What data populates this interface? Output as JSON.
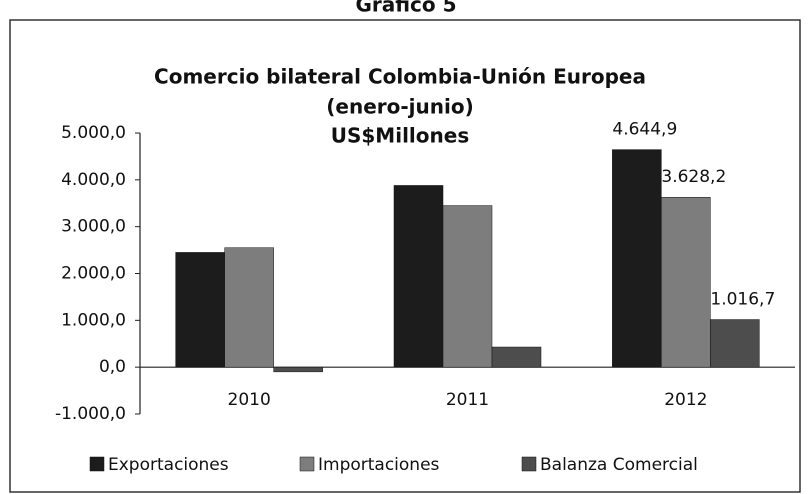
{
  "chart_data": {
    "type": "bar",
    "caption": "Gráfico 5",
    "title": [
      "Comercio bilateral Colombia-Unión Europea",
      "(enero-junio)",
      "US$Millones"
    ],
    "categories": [
      "2010",
      "2011",
      "2012"
    ],
    "series": [
      {
        "name": "Exportaciones",
        "color": "#1c1c1c",
        "values": [
          2450,
          3880,
          4644.9
        ],
        "value_labels": [
          null,
          null,
          "4.644,9"
        ]
      },
      {
        "name": "Importaciones",
        "color": "#7d7d7d",
        "values": [
          2550,
          3450,
          3628.2
        ],
        "value_labels": [
          null,
          null,
          "3.628,2"
        ]
      },
      {
        "name": "Balanza Comercial",
        "color": "#4d4d4d",
        "values": [
          -100,
          430,
          1016.7
        ],
        "value_labels": [
          null,
          null,
          "1.016,7"
        ]
      }
    ],
    "ylim": [
      -1000,
      5000
    ],
    "yticks": [
      {
        "value": -1000,
        "label": "-1.000,0"
      },
      {
        "value": 0,
        "label": "0,0"
      },
      {
        "value": 1000,
        "label": "1.000,0"
      },
      {
        "value": 2000,
        "label": "2.000,0"
      },
      {
        "value": 3000,
        "label": "3.000,0"
      },
      {
        "value": 4000,
        "label": "4.000,0"
      },
      {
        "value": 5000,
        "label": "5.000,0"
      }
    ],
    "grid": false,
    "legend": "bottom"
  }
}
